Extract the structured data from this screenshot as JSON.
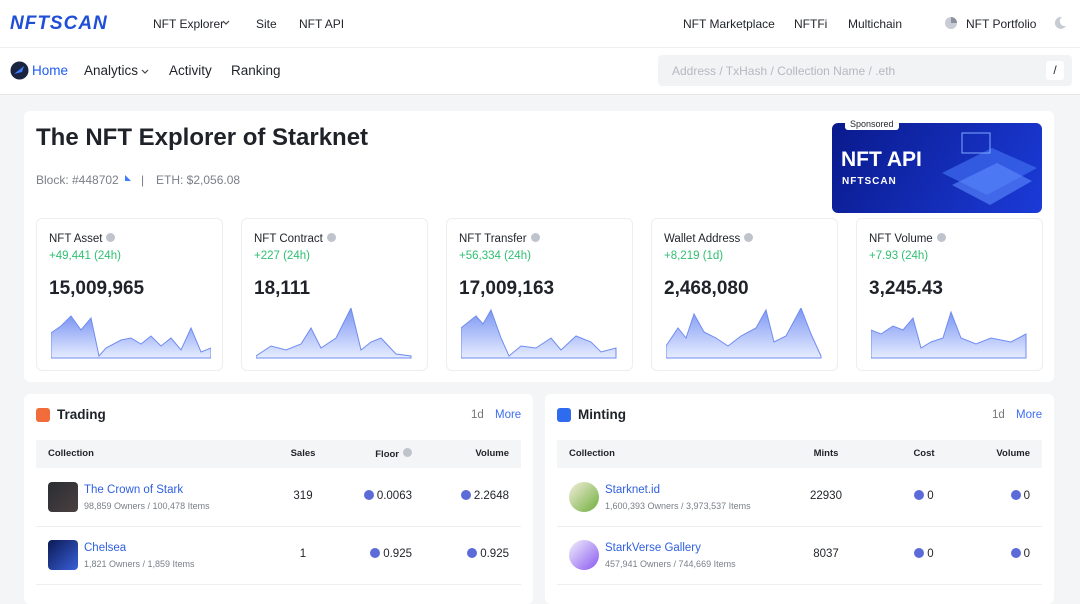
{
  "header": {
    "logo": "NFTSCAN",
    "nav": [
      "NFT Explorer",
      "Site",
      "NFT API"
    ],
    "nav_right": [
      "NFT Marketplace",
      "NFTFi",
      "Multichain",
      "NFT Portfolio"
    ]
  },
  "subnav": {
    "items": [
      "Home",
      "Analytics",
      "Activity",
      "Ranking"
    ],
    "search_placeholder": "Address / TxHash / Collection Name / .eth",
    "search_key": "/"
  },
  "hero": {
    "title": "The NFT Explorer of Starknet",
    "block": "Block: #448702",
    "separator": "|",
    "eth": "ETH: $2,056.08",
    "ad": {
      "tag": "Sponsored",
      "title": "NFT API",
      "brand": "NFTSCAN"
    }
  },
  "stats": [
    {
      "label": "NFT Asset",
      "change": "+49,441 (24h)",
      "value": "15,009,965"
    },
    {
      "label": "NFT Contract",
      "change": "+227 (24h)",
      "value": "18,111"
    },
    {
      "label": "NFT Transfer",
      "change": "+56,334 (24h)",
      "value": "17,009,163"
    },
    {
      "label": "Wallet Address",
      "change": "+8,219 (1d)",
      "value": "2,468,080"
    },
    {
      "label": "NFT Volume",
      "change": "+7.93 (24h)",
      "value": "3,245.43"
    }
  ],
  "trading": {
    "title": "Trading",
    "period": "1d",
    "more": "More",
    "columns": [
      "Collection",
      "Sales",
      "Floor",
      "Volume"
    ],
    "rows": [
      {
        "name": "The Crown of Stark",
        "details": "98,859 Owners / 100,478 Items",
        "cells": [
          "319",
          "0.0063",
          "2.2648"
        ]
      },
      {
        "name": "Chelsea",
        "details": "1,821 Owners / 1,859 Items",
        "cells": [
          "1",
          "0.925",
          "0.925"
        ]
      }
    ]
  },
  "minting": {
    "title": "Minting",
    "period": "1d",
    "more": "More",
    "columns": [
      "Collection",
      "Mints",
      "Cost",
      "Volume"
    ],
    "rows": [
      {
        "name": "Starknet.id",
        "details": "1,600,393 Owners / 3,973,537 Items",
        "cells": [
          "22930",
          "0",
          "0"
        ]
      },
      {
        "name": "StarkVerse Gallery",
        "details": "457,941 Owners / 744,669 Items",
        "cells": [
          "8037",
          "0",
          "0"
        ]
      }
    ]
  }
}
